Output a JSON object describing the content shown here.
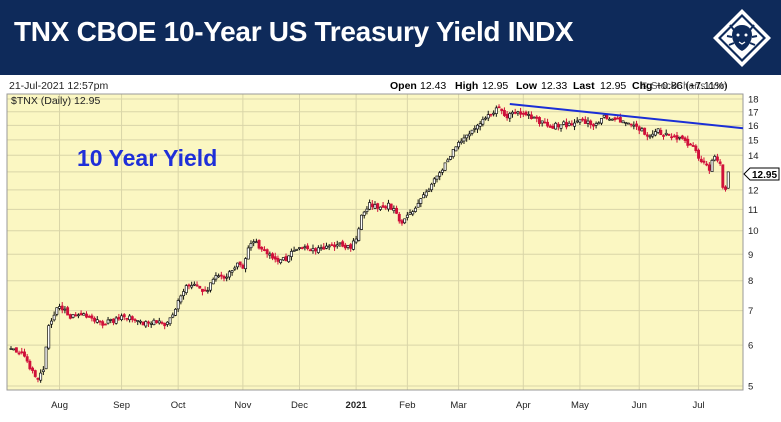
{
  "header": {
    "title": "TNX CBOE 10-Year US Treasury Yield INDX",
    "logo_icon": "lion-crest-icon"
  },
  "meta": {
    "date": "21-Jul-2021 12:57pm",
    "source": "© StockCharts.com",
    "symbol_label": "$TNX (Daily) 12.95",
    "ohlc": {
      "open_label": "Open",
      "open": "12.43",
      "high_label": "High",
      "high": "12.95",
      "low_label": "Low",
      "low": "12.33",
      "last_label": "Last",
      "last": "12.95",
      "chg_label": "Chg",
      "chg": "+0.86 (+7.11%)"
    },
    "last_price_badge": "12.95"
  },
  "annotation": "10 Year Yield",
  "colors": {
    "header_bg": "#0e2a5a",
    "plot_bg": "#fbf7c2",
    "up": "#111111",
    "down": "#d0103a",
    "trendline": "#1b2fd6",
    "annotation": "#1f2fd8"
  },
  "chart_data": {
    "type": "candlestick",
    "title": "",
    "y_scale": "log",
    "ylim": [
      5,
      18
    ],
    "y_ticks": [
      5,
      6,
      7,
      8,
      9,
      10,
      11,
      12,
      13,
      14,
      15,
      16,
      17,
      18
    ],
    "x_labels": [
      {
        "label": "Aug",
        "t": 18
      },
      {
        "label": "Sep",
        "t": 41
      },
      {
        "label": "Oct",
        "t": 62
      },
      {
        "label": "Nov",
        "t": 86
      },
      {
        "label": "Dec",
        "t": 107
      },
      {
        "label": "2021",
        "t": 128
      },
      {
        "label": "Feb",
        "t": 147
      },
      {
        "label": "Mar",
        "t": 166
      },
      {
        "label": "Apr",
        "t": 190
      },
      {
        "label": "May",
        "t": 211
      },
      {
        "label": "Jun",
        "t": 233
      },
      {
        "label": "Jul",
        "t": 255
      }
    ],
    "anchors": [
      [
        0,
        5.9
      ],
      [
        5,
        5.7
      ],
      [
        8,
        5.3
      ],
      [
        10,
        5.1
      ],
      [
        12,
        5.4
      ],
      [
        14,
        6.5
      ],
      [
        16,
        6.9
      ],
      [
        18,
        7.2
      ],
      [
        22,
        6.8
      ],
      [
        26,
        6.9
      ],
      [
        30,
        6.7
      ],
      [
        34,
        6.6
      ],
      [
        38,
        6.7
      ],
      [
        41,
        6.8
      ],
      [
        45,
        6.8
      ],
      [
        49,
        6.6
      ],
      [
        53,
        6.7
      ],
      [
        57,
        6.6
      ],
      [
        60,
        6.9
      ],
      [
        64,
        7.7
      ],
      [
        68,
        7.9
      ],
      [
        72,
        7.6
      ],
      [
        76,
        8.1
      ],
      [
        80,
        8.2
      ],
      [
        84,
        8.6
      ],
      [
        86,
        8.4
      ],
      [
        88,
        9.3
      ],
      [
        90,
        9.6
      ],
      [
        94,
        9.1
      ],
      [
        98,
        8.8
      ],
      [
        102,
        8.8
      ],
      [
        106,
        9.3
      ],
      [
        110,
        9.3
      ],
      [
        114,
        9.2
      ],
      [
        118,
        9.4
      ],
      [
        122,
        9.4
      ],
      [
        126,
        9.3
      ],
      [
        128,
        9.6
      ],
      [
        130,
        10.8
      ],
      [
        133,
        11.3
      ],
      [
        136,
        11.1
      ],
      [
        140,
        11.2
      ],
      [
        143,
        10.8
      ],
      [
        145,
        10.3
      ],
      [
        148,
        10.8
      ],
      [
        152,
        11.5
      ],
      [
        155,
        11.9
      ],
      [
        158,
        12.8
      ],
      [
        162,
        13.7
      ],
      [
        165,
        14.7
      ],
      [
        168,
        15.0
      ],
      [
        171,
        15.6
      ],
      [
        175,
        16.4
      ],
      [
        178,
        16.9
      ],
      [
        181,
        17.3
      ],
      [
        184,
        16.7
      ],
      [
        186,
        17.1
      ],
      [
        189,
        17.0
      ],
      [
        192,
        16.7
      ],
      [
        196,
        16.3
      ],
      [
        200,
        15.9
      ],
      [
        204,
        16.1
      ],
      [
        208,
        16.0
      ],
      [
        212,
        16.4
      ],
      [
        216,
        15.9
      ],
      [
        220,
        16.6
      ],
      [
        224,
        16.5
      ],
      [
        228,
        16.1
      ],
      [
        232,
        16.0
      ],
      [
        236,
        15.2
      ],
      [
        240,
        15.6
      ],
      [
        244,
        15.2
      ],
      [
        248,
        15.1
      ],
      [
        251,
        14.7
      ],
      [
        254,
        14.3
      ],
      [
        256,
        13.6
      ],
      [
        259,
        13.2
      ],
      [
        261,
        13.9
      ],
      [
        263,
        13.4
      ],
      [
        264,
        12.2
      ],
      [
        265,
        12.1
      ],
      [
        266,
        12.95
      ]
    ],
    "trendline": [
      [
        185,
        17.6
      ],
      [
        285,
        15.8
      ]
    ]
  }
}
